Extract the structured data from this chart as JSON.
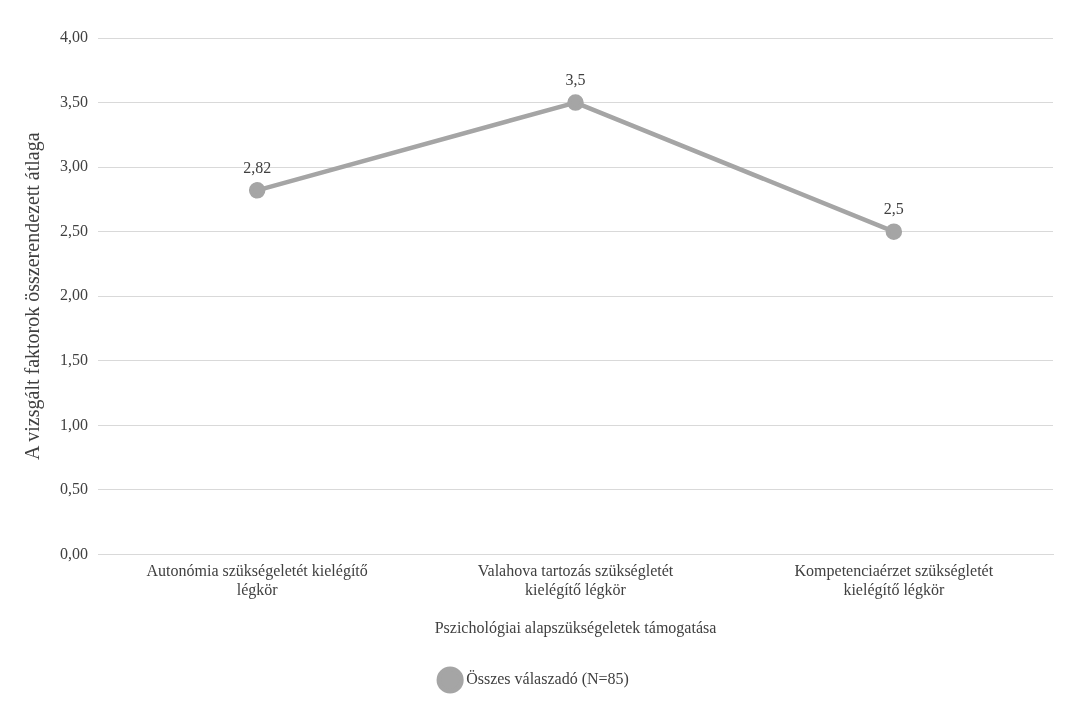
{
  "chart_data": {
    "type": "line",
    "xlabel": "Pszichológiai alapszükségeletek támogatása",
    "ylabel": "A vizsgált faktorok összerendezett átlaga",
    "categories": [
      "Autonómia szükségeletét kielégítő légkör",
      "Valahova tartozás szükségletét kielégítő légkör",
      "Kompetenciaérzet szükségletét kielégítő légkör"
    ],
    "series": [
      {
        "name": "Összes válaszadó (N=85)",
        "color": "#a5a5a5",
        "values": [
          2.82,
          3.5,
          2.5
        ],
        "value_labels": [
          "2,82",
          "3,5",
          "2,5"
        ]
      }
    ],
    "ylim": [
      0,
      4
    ],
    "yticks": [
      {
        "value": 0,
        "label": "0,00"
      },
      {
        "value": 0.5,
        "label": "0,50"
      },
      {
        "value": 1,
        "label": "1,00"
      },
      {
        "value": 1.5,
        "label": "1,50"
      },
      {
        "value": 2,
        "label": "2,00"
      },
      {
        "value": 2.5,
        "label": "2,50"
      },
      {
        "value": 3,
        "label": "3,00"
      },
      {
        "value": 3.5,
        "label": "3,50"
      },
      {
        "value": 4,
        "label": "4,00"
      }
    ],
    "grid": "y",
    "legend": "bottom",
    "marker": "circle",
    "line_style": "solid"
  }
}
